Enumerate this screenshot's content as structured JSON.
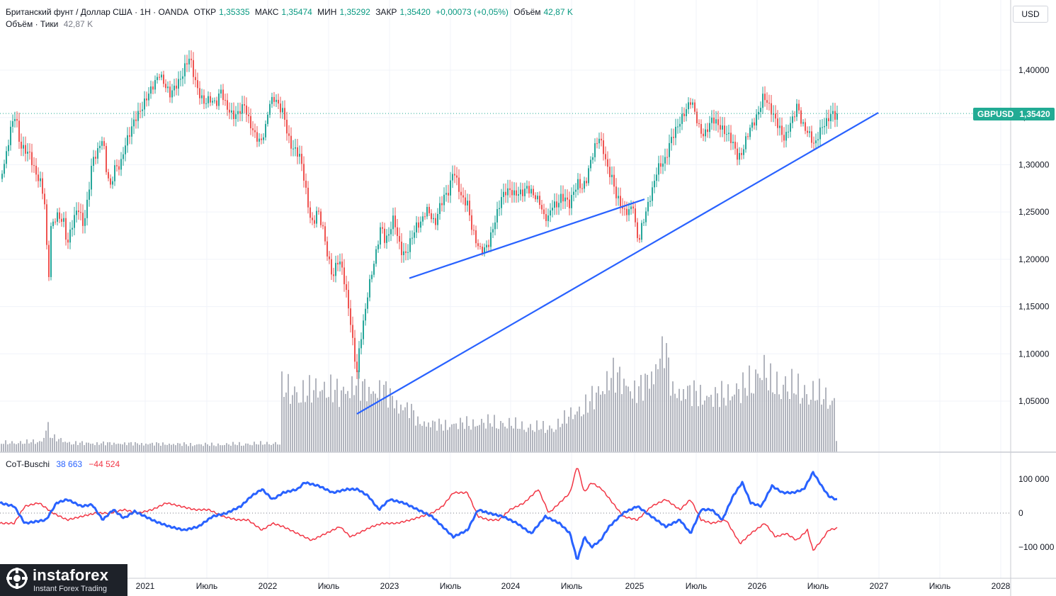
{
  "header": {
    "symbol": "Британский фунт / Доллар США · 1Н · OANDA",
    "open_label": "ОТКР",
    "open": "1,35335",
    "high_label": "МАКС",
    "high": "1,35474",
    "low_label": "МИН",
    "low": "1,35292",
    "close_label": "ЗАКР",
    "close": "1,35420",
    "change": "+0,00073 (+0,05%)",
    "volume_label": "Объём",
    "volume": "42,87 K",
    "volume_sub_label": "Объём · Тики",
    "volume_sub": "42,87 K"
  },
  "currency": "USD",
  "price_tag": {
    "symbol": "GBPUSD",
    "value": "1,35420"
  },
  "cot": {
    "name": "CoT-Buschi",
    "blue_value": "38 663",
    "red_value": "−44 524"
  },
  "logo": {
    "name": "instaforex",
    "tagline": "Instant Forex Trading"
  },
  "colors": {
    "up": "#26a69a",
    "down": "#ef5350",
    "trendline": "#2962ff",
    "cot_blue": "#2962ff",
    "cot_red": "#f23645",
    "volume": "#b2b5be"
  },
  "chart_data": {
    "type": "candlestick",
    "price_axis": {
      "ticks": [
        1.4,
        1.35,
        1.3,
        1.25,
        1.2,
        1.15,
        1.1,
        1.05
      ],
      "tick_labels": [
        "1,40000",
        "1,35000",
        "1,30000",
        "1,25000",
        "1,20000",
        "1,15000",
        "1,10000",
        "1,05000"
      ]
    },
    "time_axis": {
      "labels": [
        "2021",
        "Июль",
        "2022",
        "Июль",
        "2023",
        "Июль",
        "2024",
        "Июль",
        "2025",
        "Июль",
        "2026",
        "Июль",
        "2027",
        "Июль",
        "2028"
      ]
    },
    "cot_axis": {
      "ticks": [
        100000,
        0,
        -100000
      ],
      "tick_labels": [
        "100 000",
        "0",
        "−100 000"
      ]
    },
    "last_price": 1.3542,
    "price_path": [
      [
        0,
        1.285
      ],
      [
        8,
        1.305
      ],
      [
        15,
        1.335
      ],
      [
        22,
        1.35
      ],
      [
        28,
        1.315
      ],
      [
        35,
        1.31
      ],
      [
        42,
        1.305
      ],
      [
        50,
        1.285
      ],
      [
        58,
        1.275
      ],
      [
        64,
        1.25
      ],
      [
        68,
        1.165
      ],
      [
        72,
        1.23
      ],
      [
        80,
        1.245
      ],
      [
        90,
        1.24
      ],
      [
        95,
        1.215
      ],
      [
        100,
        1.235
      ],
      [
        110,
        1.26
      ],
      [
        118,
        1.24
      ],
      [
        124,
        1.27
      ],
      [
        130,
        1.31
      ],
      [
        138,
        1.32
      ],
      [
        145,
        1.335
      ],
      [
        150,
        1.3
      ],
      [
        156,
        1.28
      ],
      [
        162,
        1.3
      ],
      [
        170,
        1.3
      ],
      [
        176,
        1.32
      ],
      [
        182,
        1.33
      ],
      [
        190,
        1.345
      ],
      [
        200,
        1.355
      ],
      [
        210,
        1.37
      ],
      [
        218,
        1.38
      ],
      [
        225,
        1.39
      ],
      [
        232,
        1.38
      ],
      [
        240,
        1.37
      ],
      [
        248,
        1.38
      ],
      [
        256,
        1.39
      ],
      [
        262,
        1.405
      ],
      [
        268,
        1.415
      ],
      [
        274,
        1.395
      ],
      [
        280,
        1.38
      ],
      [
        288,
        1.37
      ],
      [
        296,
        1.375
      ],
      [
        305,
        1.37
      ],
      [
        312,
        1.385
      ],
      [
        318,
        1.37
      ],
      [
        325,
        1.36
      ],
      [
        332,
        1.355
      ],
      [
        338,
        1.36
      ],
      [
        345,
        1.365
      ],
      [
        352,
        1.345
      ],
      [
        360,
        1.33
      ],
      [
        368,
        1.32
      ],
      [
        375,
        1.335
      ],
      [
        380,
        1.36
      ],
      [
        388,
        1.365
      ],
      [
        394,
        1.355
      ],
      [
        400,
        1.35
      ],
      [
        405,
        1.33
      ],
      [
        410,
        1.315
      ],
      [
        418,
        1.31
      ],
      [
        424,
        1.305
      ],
      [
        430,
        1.28
      ],
      [
        436,
        1.25
      ],
      [
        442,
        1.235
      ],
      [
        448,
        1.255
      ],
      [
        456,
        1.235
      ],
      [
        462,
        1.21
      ],
      [
        470,
        1.185
      ],
      [
        476,
        1.205
      ],
      [
        482,
        1.2
      ],
      [
        488,
        1.175
      ],
      [
        494,
        1.145
      ],
      [
        500,
        1.105
      ],
      [
        504,
        1.085
      ],
      [
        508,
        1.115
      ],
      [
        514,
        1.14
      ],
      [
        520,
        1.17
      ],
      [
        526,
        1.19
      ],
      [
        532,
        1.21
      ],
      [
        538,
        1.235
      ],
      [
        544,
        1.215
      ],
      [
        550,
        1.225
      ],
      [
        556,
        1.24
      ],
      [
        562,
        1.215
      ],
      [
        568,
        1.2
      ],
      [
        574,
        1.2
      ],
      [
        580,
        1.215
      ],
      [
        588,
        1.23
      ],
      [
        595,
        1.235
      ],
      [
        602,
        1.25
      ],
      [
        608,
        1.245
      ],
      [
        614,
        1.235
      ],
      [
        620,
        1.255
      ],
      [
        628,
        1.27
      ],
      [
        634,
        1.275
      ],
      [
        640,
        1.3
      ],
      [
        646,
        1.285
      ],
      [
        652,
        1.27
      ],
      [
        660,
        1.265
      ],
      [
        666,
        1.24
      ],
      [
        672,
        1.225
      ],
      [
        678,
        1.215
      ],
      [
        684,
        1.215
      ],
      [
        690,
        1.22
      ],
      [
        696,
        1.235
      ],
      [
        702,
        1.25
      ],
      [
        708,
        1.265
      ],
      [
        714,
        1.27
      ],
      [
        720,
        1.27
      ],
      [
        726,
        1.265
      ],
      [
        732,
        1.265
      ],
      [
        738,
        1.265
      ],
      [
        744,
        1.27
      ],
      [
        750,
        1.265
      ],
      [
        756,
        1.26
      ],
      [
        762,
        1.255
      ],
      [
        768,
        1.24
      ],
      [
        774,
        1.24
      ],
      [
        780,
        1.255
      ],
      [
        786,
        1.255
      ],
      [
        792,
        1.265
      ],
      [
        798,
        1.265
      ],
      [
        804,
        1.26
      ],
      [
        810,
        1.275
      ],
      [
        816,
        1.285
      ],
      [
        822,
        1.28
      ],
      [
        828,
        1.29
      ],
      [
        834,
        1.31
      ],
      [
        840,
        1.325
      ],
      [
        846,
        1.335
      ],
      [
        852,
        1.32
      ],
      [
        858,
        1.3
      ],
      [
        864,
        1.29
      ],
      [
        870,
        1.27
      ],
      [
        876,
        1.26
      ],
      [
        882,
        1.25
      ],
      [
        888,
        1.25
      ],
      [
        894,
        1.255
      ],
      [
        898,
        1.225
      ],
      [
        902,
        1.215
      ],
      [
        906,
        1.23
      ],
      [
        910,
        1.24
      ],
      [
        916,
        1.255
      ],
      [
        922,
        1.27
      ],
      [
        928,
        1.29
      ],
      [
        934,
        1.295
      ],
      [
        940,
        1.3
      ],
      [
        946,
        1.32
      ],
      [
        952,
        1.33
      ],
      [
        958,
        1.34
      ],
      [
        964,
        1.35
      ],
      [
        970,
        1.36
      ],
      [
        976,
        1.37
      ],
      [
        982,
        1.355
      ],
      [
        988,
        1.34
      ],
      [
        994,
        1.335
      ],
      [
        1000,
        1.345
      ],
      [
        1006,
        1.355
      ],
      [
        1012,
        1.35
      ],
      [
        1018,
        1.345
      ],
      [
        1024,
        1.34
      ],
      [
        1030,
        1.335
      ],
      [
        1036,
        1.325
      ],
      [
        1042,
        1.31
      ],
      [
        1048,
        1.315
      ],
      [
        1054,
        1.33
      ],
      [
        1060,
        1.34
      ],
      [
        1066,
        1.345
      ],
      [
        1072,
        1.355
      ],
      [
        1078,
        1.37
      ],
      [
        1084,
        1.36
      ],
      [
        1090,
        1.35
      ],
      [
        1096,
        1.34
      ],
      [
        1102,
        1.33
      ],
      [
        1108,
        1.32
      ],
      [
        1114,
        1.335
      ],
      [
        1120,
        1.345
      ],
      [
        1126,
        1.36
      ],
      [
        1132,
        1.34
      ],
      [
        1138,
        1.335
      ],
      [
        1144,
        1.33
      ],
      [
        1150,
        1.32
      ],
      [
        1156,
        1.335
      ],
      [
        1162,
        1.345
      ],
      [
        1168,
        1.35
      ],
      [
        1174,
        1.36
      ],
      [
        1178,
        1.358
      ],
      [
        1182,
        1.3542
      ]
    ],
    "volume_path": [
      [
        0,
        0.3
      ],
      [
        60,
        0.35
      ],
      [
        66,
        1.0
      ],
      [
        72,
        0.5
      ],
      [
        100,
        0.3
      ],
      [
        200,
        0.28
      ],
      [
        300,
        0.25
      ],
      [
        396,
        0.3
      ],
      [
        398,
        2.1
      ],
      [
        420,
        2.0
      ],
      [
        440,
        2.0
      ],
      [
        460,
        2.2
      ],
      [
        480,
        1.9
      ],
      [
        500,
        2.3
      ],
      [
        520,
        2.0
      ],
      [
        540,
        2.1
      ],
      [
        560,
        1.6
      ],
      [
        580,
        1.4
      ],
      [
        590,
        1.0
      ],
      [
        620,
        0.9
      ],
      [
        660,
        0.95
      ],
      [
        700,
        1.0
      ],
      [
        740,
        0.85
      ],
      [
        780,
        0.8
      ],
      [
        810,
        1.3
      ],
      [
        830,
        1.6
      ],
      [
        850,
        2.1
      ],
      [
        862,
        2.6
      ],
      [
        880,
        2.3
      ],
      [
        900,
        2.0
      ],
      [
        920,
        2.5
      ],
      [
        938,
        3.5
      ],
      [
        950,
        2.0
      ],
      [
        970,
        2.0
      ],
      [
        990,
        1.9
      ],
      [
        1010,
        1.8
      ],
      [
        1030,
        2.0
      ],
      [
        1050,
        2.1
      ],
      [
        1076,
        2.8
      ],
      [
        1090,
        2.2
      ],
      [
        1110,
        2.3
      ],
      [
        1130,
        2.0
      ],
      [
        1150,
        2.0
      ],
      [
        1170,
        1.7
      ],
      [
        1178,
        1.7
      ],
      [
        1182,
        0.05
      ]
    ],
    "cot_blue_path": [
      [
        0,
        30000
      ],
      [
        20,
        20000
      ],
      [
        35,
        -30000
      ],
      [
        50,
        -25000
      ],
      [
        65,
        -20000
      ],
      [
        80,
        30000
      ],
      [
        95,
        40000
      ],
      [
        115,
        20000
      ],
      [
        130,
        25000
      ],
      [
        145,
        -20000
      ],
      [
        160,
        10000
      ],
      [
        175,
        -15000
      ],
      [
        190,
        5000
      ],
      [
        205,
        -10000
      ],
      [
        220,
        -25000
      ],
      [
        240,
        -40000
      ],
      [
        260,
        -50000
      ],
      [
        280,
        -40000
      ],
      [
        300,
        -10000
      ],
      [
        320,
        0
      ],
      [
        340,
        20000
      ],
      [
        355,
        50000
      ],
      [
        370,
        70000
      ],
      [
        385,
        40000
      ],
      [
        400,
        60000
      ],
      [
        420,
        70000
      ],
      [
        430,
        90000
      ],
      [
        450,
        80000
      ],
      [
        470,
        60000
      ],
      [
        490,
        70000
      ],
      [
        505,
        70000
      ],
      [
        520,
        50000
      ],
      [
        535,
        10000
      ],
      [
        550,
        40000
      ],
      [
        570,
        30000
      ],
      [
        590,
        10000
      ],
      [
        610,
        -10000
      ],
      [
        625,
        -40000
      ],
      [
        640,
        -70000
      ],
      [
        660,
        -50000
      ],
      [
        675,
        10000
      ],
      [
        690,
        0
      ],
      [
        710,
        -10000
      ],
      [
        730,
        -30000
      ],
      [
        750,
        -60000
      ],
      [
        770,
        -10000
      ],
      [
        790,
        -30000
      ],
      [
        805,
        -60000
      ],
      [
        815,
        -140000
      ],
      [
        825,
        -70000
      ],
      [
        835,
        -100000
      ],
      [
        848,
        -80000
      ],
      [
        860,
        -40000
      ],
      [
        880,
        0
      ],
      [
        900,
        20000
      ],
      [
        920,
        -10000
      ],
      [
        940,
        -40000
      ],
      [
        960,
        -20000
      ],
      [
        975,
        -60000
      ],
      [
        990,
        10000
      ],
      [
        1005,
        10000
      ],
      [
        1020,
        -20000
      ],
      [
        1035,
        50000
      ],
      [
        1048,
        90000
      ],
      [
        1060,
        30000
      ],
      [
        1075,
        20000
      ],
      [
        1090,
        80000
      ],
      [
        1105,
        60000
      ],
      [
        1120,
        60000
      ],
      [
        1135,
        70000
      ],
      [
        1148,
        120000
      ],
      [
        1160,
        80000
      ],
      [
        1170,
        50000
      ],
      [
        1182,
        38663
      ]
    ],
    "cot_red_path": [
      [
        0,
        -30000
      ],
      [
        20,
        -30000
      ],
      [
        35,
        20000
      ],
      [
        55,
        30000
      ],
      [
        75,
        0
      ],
      [
        95,
        -20000
      ],
      [
        115,
        -10000
      ],
      [
        135,
        0
      ],
      [
        155,
        0
      ],
      [
        175,
        10000
      ],
      [
        195,
        0
      ],
      [
        215,
        10000
      ],
      [
        235,
        30000
      ],
      [
        255,
        20000
      ],
      [
        275,
        10000
      ],
      [
        295,
        10000
      ],
      [
        315,
        -10000
      ],
      [
        335,
        -20000
      ],
      [
        350,
        -20000
      ],
      [
        370,
        -50000
      ],
      [
        385,
        -30000
      ],
      [
        400,
        -40000
      ],
      [
        420,
        -60000
      ],
      [
        440,
        -80000
      ],
      [
        460,
        -60000
      ],
      [
        480,
        -40000
      ],
      [
        495,
        -70000
      ],
      [
        510,
        -55000
      ],
      [
        525,
        -40000
      ],
      [
        540,
        -30000
      ],
      [
        560,
        -30000
      ],
      [
        580,
        -20000
      ],
      [
        595,
        -10000
      ],
      [
        610,
        0
      ],
      [
        625,
        20000
      ],
      [
        640,
        60000
      ],
      [
        660,
        60000
      ],
      [
        675,
        -10000
      ],
      [
        690,
        -20000
      ],
      [
        705,
        -20000
      ],
      [
        720,
        10000
      ],
      [
        740,
        30000
      ],
      [
        760,
        70000
      ],
      [
        775,
        0
      ],
      [
        790,
        30000
      ],
      [
        805,
        60000
      ],
      [
        815,
        140000
      ],
      [
        825,
        60000
      ],
      [
        835,
        90000
      ],
      [
        850,
        70000
      ],
      [
        865,
        30000
      ],
      [
        880,
        -10000
      ],
      [
        900,
        -20000
      ],
      [
        920,
        20000
      ],
      [
        940,
        40000
      ],
      [
        960,
        10000
      ],
      [
        975,
        40000
      ],
      [
        990,
        -20000
      ],
      [
        1005,
        -30000
      ],
      [
        1025,
        -20000
      ],
      [
        1045,
        -90000
      ],
      [
        1060,
        -60000
      ],
      [
        1080,
        -30000
      ],
      [
        1095,
        -70000
      ],
      [
        1110,
        -60000
      ],
      [
        1125,
        -80000
      ],
      [
        1140,
        -50000
      ],
      [
        1148,
        -110000
      ],
      [
        1160,
        -80000
      ],
      [
        1170,
        -50000
      ],
      [
        1182,
        -44524
      ]
    ],
    "trendlines": [
      {
        "from": [
          504,
          1.0365
        ],
        "to": [
          1240,
          1.355
        ]
      },
      {
        "from": [
          578,
          1.18
        ],
        "to": [
          910,
          1.2635
        ]
      }
    ]
  }
}
